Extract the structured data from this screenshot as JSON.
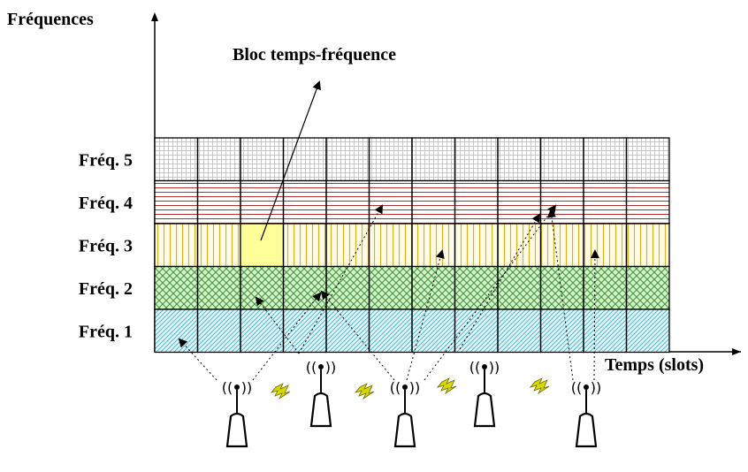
{
  "y_axis_label": "Fréquences",
  "x_axis_label": "Temps (slots)",
  "block_callout": "Bloc temps-fréquence",
  "rows": [
    {
      "label": "Fréq. 5",
      "pattern": "grid",
      "color": "#b5b5b5"
    },
    {
      "label": "Fréq. 4",
      "pattern": "horizontal-lines",
      "color": "#b03030"
    },
    {
      "label": "Fréq. 3",
      "pattern": "vertical-lines",
      "color": "#e0b020",
      "background": "#fffde8"
    },
    {
      "label": "Fréq. 2",
      "pattern": "crosshatch",
      "color": "#3f9a3f",
      "background": "#d8f0cc"
    },
    {
      "label": "Fréq. 1",
      "pattern": "diagonal",
      "color": "#4fb8cc",
      "background": "#e6f7fb"
    }
  ],
  "time_slots": 12,
  "highlighted_block": {
    "row": "Fréq. 3",
    "slot": 3,
    "color": "#ffff99"
  },
  "antennas": [
    {
      "name": "antenna-1",
      "signal_icon": "((•))"
    },
    {
      "name": "antenna-2",
      "signal_icon": "((•))"
    },
    {
      "name": "antenna-3",
      "signal_icon": "((•))"
    },
    {
      "name": "antenna-4",
      "signal_icon": "((•))"
    },
    {
      "name": "antenna-5",
      "signal_icon": "((•))"
    },
    {
      "name": "antenna-6",
      "signal_icon": "((•))"
    }
  ],
  "interference_icon": "lightning-bolt",
  "interference_color": "#d8d800"
}
